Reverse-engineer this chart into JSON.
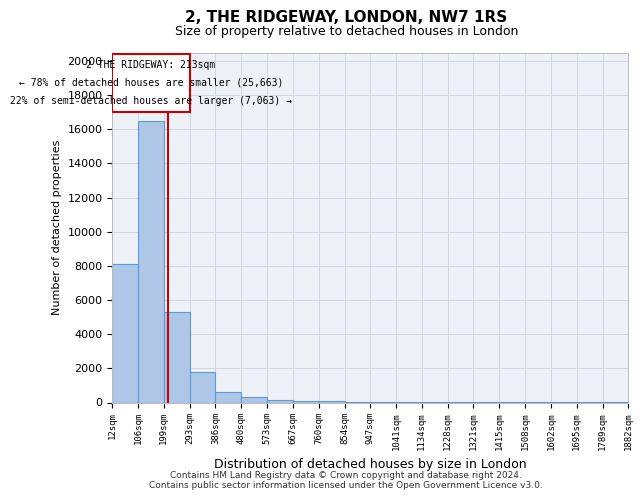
{
  "title": "2, THE RIDGEWAY, LONDON, NW7 1RS",
  "subtitle": "Size of property relative to detached houses in London",
  "xlabel": "Distribution of detached houses by size in London",
  "ylabel": "Number of detached properties",
  "property_label": "2 THE RIDGEWAY: 213sqm",
  "annotation_line1": "← 78% of detached houses are smaller (25,663)",
  "annotation_line2": "22% of semi-detached houses are larger (7,063) →",
  "property_size": 213,
  "footer_line1": "Contains HM Land Registry data © Crown copyright and database right 2024.",
  "footer_line2": "Contains public sector information licensed under the Open Government Licence v3.0.",
  "bin_edges": [
    12,
    106,
    199,
    293,
    386,
    480,
    573,
    667,
    760,
    854,
    947,
    1041,
    1134,
    1228,
    1321,
    1415,
    1508,
    1602,
    1695,
    1789,
    1882
  ],
  "bin_counts": [
    8100,
    16500,
    5300,
    1800,
    600,
    300,
    150,
    100,
    60,
    40,
    30,
    25,
    20,
    15,
    12,
    10,
    8,
    6,
    5,
    4
  ],
  "bar_color": "#aec6e8",
  "bar_edge_color": "#5b9bd5",
  "vline_color": "#cc0000",
  "grid_color": "#d0d8e8",
  "bg_color": "#eef2f8",
  "ylim": [
    0,
    20500
  ],
  "xlim": [
    12,
    1882
  ],
  "tick_labels": [
    "12sqm",
    "106sqm",
    "199sqm",
    "293sqm",
    "386sqm",
    "480sqm",
    "573sqm",
    "667sqm",
    "760sqm",
    "854sqm",
    "947sqm",
    "1041sqm",
    "1134sqm",
    "1228sqm",
    "1321sqm",
    "1415sqm",
    "1508sqm",
    "1602sqm",
    "1695sqm",
    "1789sqm",
    "1882sqm"
  ]
}
